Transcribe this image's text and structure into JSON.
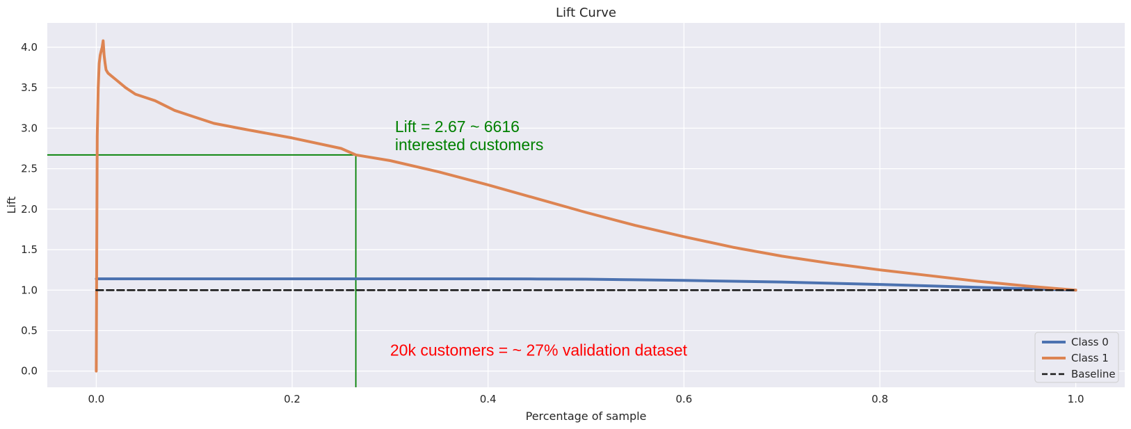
{
  "chart_data": {
    "type": "line",
    "title": "Lift Curve",
    "xlabel": "Percentage of sample",
    "ylabel": "Lift",
    "xlim": [
      -0.05,
      1.05
    ],
    "ylim": [
      -0.2,
      4.3
    ],
    "xticks": [
      "0.0",
      "0.2",
      "0.4",
      "0.6",
      "0.8",
      "1.0"
    ],
    "yticks": [
      "0.0",
      "0.5",
      "1.0",
      "1.5",
      "2.0",
      "2.5",
      "3.0",
      "3.5",
      "4.0"
    ],
    "grid": true,
    "background": "#eaeaf2",
    "legend_position": "lower-right",
    "series": [
      {
        "name": "Class 0",
        "color": "#4c72b0",
        "style": "solid",
        "x": [
          0.0,
          0.1,
          0.2,
          0.3,
          0.4,
          0.45,
          0.5,
          0.55,
          0.6,
          0.7,
          0.8,
          0.9,
          1.0
        ],
        "y": [
          1.14,
          1.14,
          1.14,
          1.14,
          1.14,
          1.138,
          1.135,
          1.128,
          1.12,
          1.1,
          1.07,
          1.035,
          1.0
        ]
      },
      {
        "name": "Class 1",
        "color": "#dd8452",
        "style": "solid",
        "x": [
          0.0,
          0.0005,
          0.001,
          0.002,
          0.003,
          0.004,
          0.005,
          0.006,
          0.007,
          0.008,
          0.009,
          0.01,
          0.012,
          0.015,
          0.02,
          0.03,
          0.04,
          0.05,
          0.06,
          0.07,
          0.08,
          0.1,
          0.12,
          0.15,
          0.2,
          0.25,
          0.265,
          0.3,
          0.35,
          0.4,
          0.45,
          0.5,
          0.55,
          0.6,
          0.65,
          0.7,
          0.75,
          0.8,
          0.85,
          0.9,
          0.95,
          1.0
        ],
        "y": [
          0.0,
          1.5,
          2.9,
          3.5,
          3.8,
          3.9,
          3.95,
          4.0,
          4.08,
          3.9,
          3.8,
          3.72,
          3.68,
          3.65,
          3.6,
          3.5,
          3.42,
          3.38,
          3.34,
          3.28,
          3.22,
          3.14,
          3.06,
          2.99,
          2.88,
          2.75,
          2.67,
          2.6,
          2.46,
          2.3,
          2.13,
          1.96,
          1.8,
          1.66,
          1.53,
          1.42,
          1.33,
          1.25,
          1.18,
          1.11,
          1.05,
          1.0
        ]
      },
      {
        "name": "Baseline",
        "color": "#1a1a1a",
        "style": "dashed",
        "x": [
          0.0,
          1.0
        ],
        "y": [
          1.0,
          1.0
        ]
      }
    ],
    "reference_lines": [
      {
        "orientation": "horizontal",
        "value": 2.67,
        "color": "#008000",
        "x_from": -0.05,
        "x_to": 0.265
      },
      {
        "orientation": "vertical",
        "value": 0.265,
        "color": "#008000",
        "y_from": -0.2,
        "y_to": 2.67
      }
    ],
    "annotations": [
      {
        "lines": [
          "Lift = 2.67 ~ 6616",
          "interested customers"
        ],
        "x": 0.305,
        "y": 2.95,
        "color": "#008000"
      },
      {
        "lines": [
          "20k customers = ~ 27% validation dataset"
        ],
        "x": 0.3,
        "y": 0.19,
        "color": "#ff0000"
      }
    ]
  }
}
